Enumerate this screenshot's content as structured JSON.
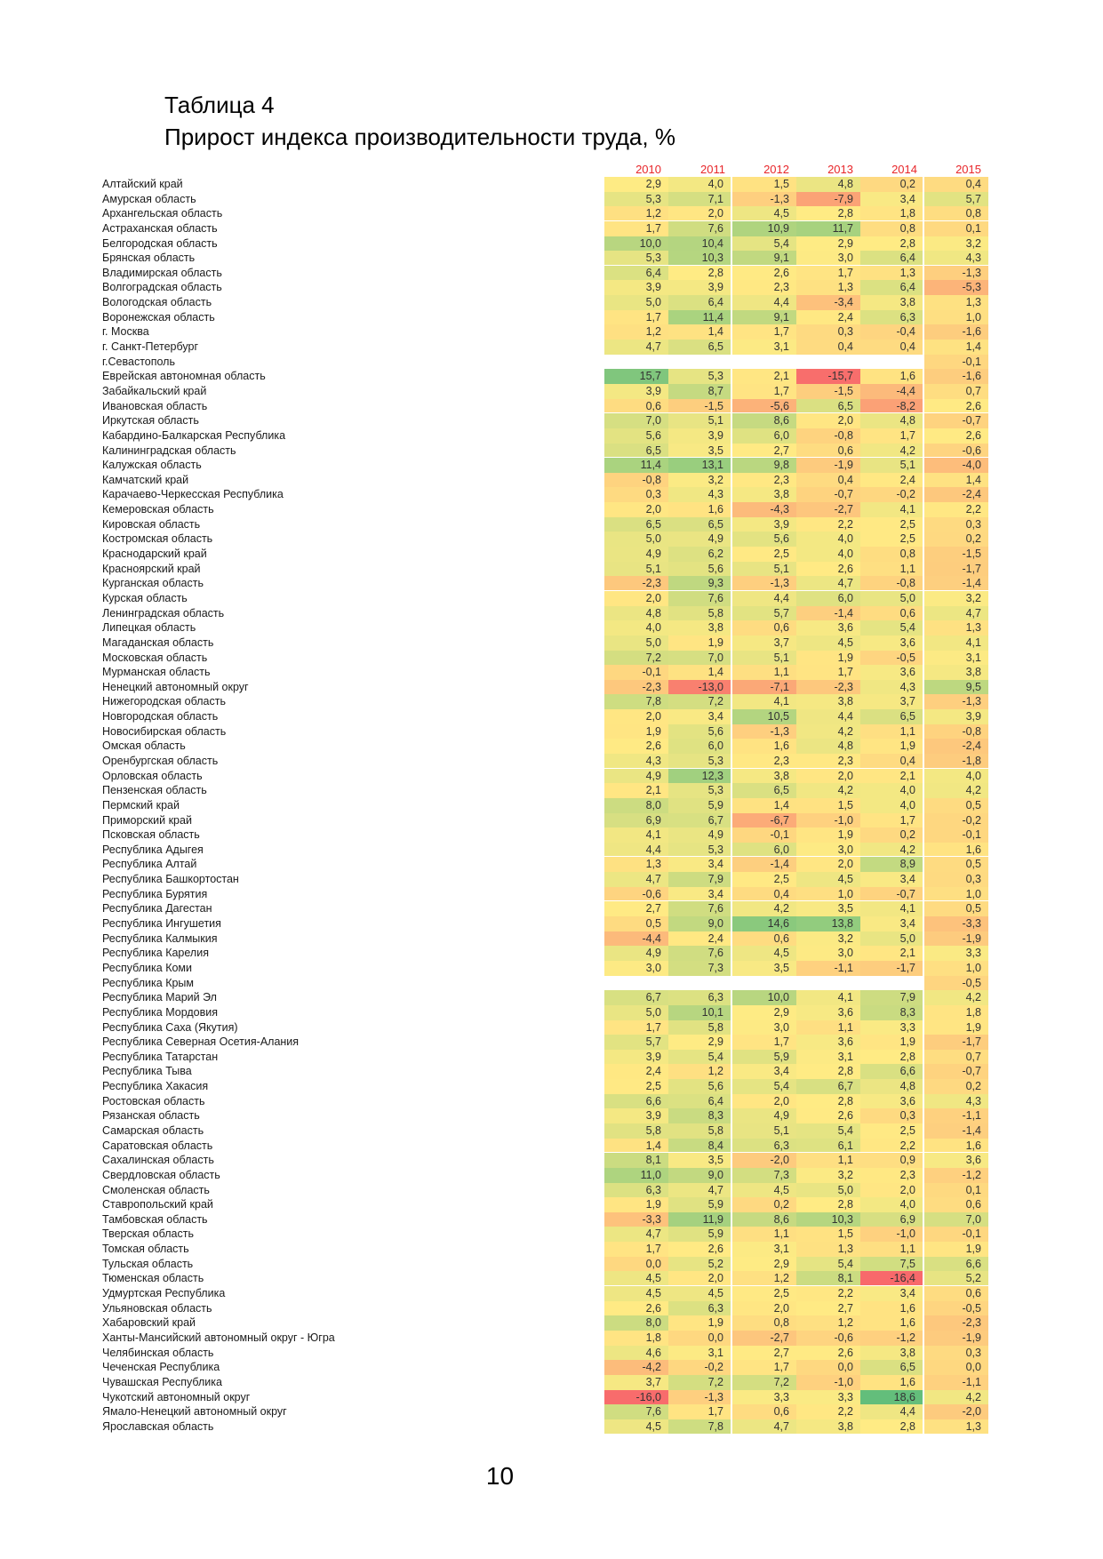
{
  "title": "Таблица 4",
  "subtitle": "Прирост индекса производительности труда, %",
  "page": {
    "number": "10"
  },
  "chart_data": {
    "type": "heatmap",
    "title": "Прирост индекса производительности труда, %",
    "columns": [
      "2010",
      "2011",
      "2012",
      "2013",
      "2014",
      "2015"
    ],
    "header_color": "#e8262a",
    "color_scale": {
      "min": -16.4,
      "mid": 2.8,
      "max": 18.6,
      "min_color": "#F8696B",
      "mid_color": "#FFEB84",
      "max_color": "#63BE7B",
      "empty_color": "#ffffff"
    },
    "number_format": "comma-decimal-1",
    "rows": [
      {
        "name": "Алтайский край",
        "values": [
          2.9,
          4.0,
          1.5,
          4.8,
          0.2,
          0.4
        ]
      },
      {
        "name": "Амурская область",
        "values": [
          5.3,
          7.1,
          -1.3,
          -7.9,
          3.4,
          5.7
        ]
      },
      {
        "name": "Архангельская область",
        "values": [
          1.2,
          2.0,
          4.5,
          2.8,
          1.8,
          0.8
        ]
      },
      {
        "name": "Астраханская область",
        "values": [
          1.7,
          7.6,
          10.9,
          11.7,
          0.8,
          0.1
        ]
      },
      {
        "name": "Белгородская область",
        "values": [
          10.0,
          10.4,
          5.4,
          2.9,
          2.8,
          3.2
        ]
      },
      {
        "name": "Брянская область",
        "values": [
          5.3,
          10.3,
          9.1,
          3.0,
          6.4,
          4.3
        ]
      },
      {
        "name": "Владимирская область",
        "values": [
          6.4,
          2.8,
          2.6,
          1.7,
          1.3,
          -1.3
        ]
      },
      {
        "name": "Волгоградская область",
        "values": [
          3.9,
          3.9,
          2.3,
          1.3,
          6.4,
          -5.3
        ]
      },
      {
        "name": "Вологодская область",
        "values": [
          5.0,
          6.4,
          4.4,
          -3.4,
          3.8,
          1.3
        ]
      },
      {
        "name": "Воронежская область",
        "values": [
          1.7,
          11.4,
          9.1,
          2.4,
          6.3,
          1.0
        ]
      },
      {
        "name": "г. Москва",
        "values": [
          1.2,
          1.4,
          1.7,
          0.3,
          -0.4,
          -1.6
        ]
      },
      {
        "name": "г. Санкт-Петербург",
        "values": [
          4.7,
          6.5,
          3.1,
          0.4,
          0.4,
          1.4
        ]
      },
      {
        "name": "г.Севастополь",
        "values": [
          null,
          null,
          null,
          null,
          null,
          -0.1
        ]
      },
      {
        "name": "Еврейская автономная область",
        "values": [
          15.7,
          5.3,
          2.1,
          -15.7,
          1.6,
          -1.6
        ]
      },
      {
        "name": "Забайкальский край",
        "values": [
          3.9,
          8.7,
          1.7,
          -1.5,
          -4.4,
          0.7
        ]
      },
      {
        "name": "Ивановская область",
        "values": [
          0.6,
          -1.5,
          -5.6,
          6.5,
          -8.2,
          2.6
        ]
      },
      {
        "name": "Иркутская область",
        "values": [
          7.0,
          5.1,
          8.6,
          2.0,
          4.8,
          -0.7
        ]
      },
      {
        "name": "Кабардино-Балкарская Республика",
        "values": [
          5.6,
          3.9,
          6.0,
          -0.8,
          1.7,
          2.6
        ]
      },
      {
        "name": "Калининградская область",
        "values": [
          6.5,
          3.5,
          2.7,
          0.6,
          4.2,
          -0.6
        ]
      },
      {
        "name": "Калужская область",
        "values": [
          11.4,
          13.1,
          9.8,
          -1.9,
          5.1,
          -4.0
        ]
      },
      {
        "name": "Камчатский край",
        "values": [
          -0.8,
          3.2,
          2.3,
          0.4,
          2.4,
          1.4
        ]
      },
      {
        "name": "Карачаево-Черкесская Республика",
        "values": [
          0.3,
          4.3,
          3.8,
          -0.7,
          -0.2,
          -2.4
        ]
      },
      {
        "name": "Кемеровская область",
        "values": [
          2.0,
          1.6,
          -4.3,
          -2.7,
          4.1,
          2.2
        ]
      },
      {
        "name": "Кировская область",
        "values": [
          6.5,
          6.5,
          3.9,
          2.2,
          2.5,
          0.3
        ]
      },
      {
        "name": "Костромская область",
        "values": [
          5.0,
          4.9,
          5.6,
          4.0,
          2.5,
          0.2
        ]
      },
      {
        "name": "Краснодарский край",
        "values": [
          4.9,
          6.2,
          2.5,
          4.0,
          0.8,
          -1.5
        ]
      },
      {
        "name": "Красноярский край",
        "values": [
          5.1,
          5.6,
          5.1,
          2.6,
          1.1,
          -1.7
        ]
      },
      {
        "name": "Курганская область",
        "values": [
          -2.3,
          9.3,
          -1.3,
          4.7,
          -0.8,
          -1.4
        ]
      },
      {
        "name": "Курская область",
        "values": [
          2.0,
          7.6,
          4.4,
          6.0,
          5.0,
          3.2
        ]
      },
      {
        "name": "Ленинградская область",
        "values": [
          4.8,
          5.8,
          5.7,
          -1.4,
          0.6,
          4.7
        ]
      },
      {
        "name": "Липецкая область",
        "values": [
          4.0,
          3.8,
          0.6,
          3.6,
          5.4,
          1.3
        ]
      },
      {
        "name": "Магаданская область",
        "values": [
          5.0,
          1.9,
          3.7,
          4.5,
          3.6,
          4.1
        ]
      },
      {
        "name": "Московская область",
        "values": [
          7.2,
          7.0,
          5.1,
          1.9,
          -0.5,
          3.1
        ]
      },
      {
        "name": "Мурманская область",
        "values": [
          -0.1,
          1.4,
          1.1,
          1.7,
          3.6,
          3.8
        ]
      },
      {
        "name": "Ненецкий автономный округ",
        "values": [
          -2.3,
          -13.0,
          -7.1,
          -2.3,
          4.3,
          9.5
        ]
      },
      {
        "name": "Нижегородская область",
        "values": [
          7.8,
          7.2,
          4.1,
          3.8,
          3.7,
          -1.3
        ]
      },
      {
        "name": "Новгородская область",
        "values": [
          2.0,
          3.4,
          10.5,
          4.4,
          6.5,
          3.9
        ]
      },
      {
        "name": "Новосибирская область",
        "values": [
          1.9,
          5.6,
          -1.3,
          4.2,
          1.1,
          -0.8
        ]
      },
      {
        "name": "Омская область",
        "values": [
          2.6,
          6.0,
          1.6,
          4.8,
          1.9,
          -2.4
        ]
      },
      {
        "name": "Оренбургская область",
        "values": [
          4.3,
          5.3,
          2.3,
          2.3,
          0.4,
          -1.8
        ]
      },
      {
        "name": "Орловская область",
        "values": [
          4.9,
          12.3,
          3.8,
          2.0,
          2.1,
          4.0
        ]
      },
      {
        "name": "Пензенская область",
        "values": [
          2.1,
          5.3,
          6.5,
          4.2,
          4.0,
          4.2
        ]
      },
      {
        "name": "Пермский край",
        "values": [
          8.0,
          5.9,
          1.4,
          1.5,
          4.0,
          0.5
        ]
      },
      {
        "name": "Приморский край",
        "values": [
          6.9,
          6.7,
          -6.7,
          -1.0,
          1.7,
          -0.2
        ]
      },
      {
        "name": "Псковская область",
        "values": [
          4.1,
          4.9,
          -0.1,
          1.9,
          0.2,
          -0.1
        ]
      },
      {
        "name": "Республика Адыгея",
        "values": [
          4.4,
          5.3,
          6.0,
          3.0,
          4.2,
          1.6
        ]
      },
      {
        "name": "Республика Алтай",
        "values": [
          1.3,
          3.4,
          -1.4,
          2.0,
          8.9,
          0.5
        ]
      },
      {
        "name": "Республика Башкортостан",
        "values": [
          4.7,
          7.9,
          2.5,
          4.5,
          3.4,
          0.3
        ]
      },
      {
        "name": "Республика Бурятия",
        "values": [
          -0.6,
          3.4,
          0.4,
          1.0,
          -0.7,
          1.0
        ]
      },
      {
        "name": "Республика Дагестан",
        "values": [
          2.7,
          7.6,
          4.2,
          3.5,
          4.1,
          0.5
        ]
      },
      {
        "name": "Республика Ингушетия",
        "values": [
          0.5,
          9.0,
          14.6,
          13.8,
          3.4,
          -3.3
        ]
      },
      {
        "name": "Республика Калмыкия",
        "values": [
          -4.4,
          2.4,
          0.6,
          3.2,
          5.0,
          -1.9
        ]
      },
      {
        "name": "Республика Карелия",
        "values": [
          4.9,
          7.6,
          4.5,
          3.0,
          2.1,
          3.3
        ]
      },
      {
        "name": "Республика Коми",
        "values": [
          3.0,
          7.3,
          3.5,
          -1.1,
          -1.7,
          1.0
        ]
      },
      {
        "name": "Республика Крым",
        "values": [
          null,
          null,
          null,
          null,
          null,
          -0.5
        ]
      },
      {
        "name": "Республика Марий Эл",
        "values": [
          6.7,
          6.3,
          10.0,
          4.1,
          7.9,
          4.2
        ]
      },
      {
        "name": "Республика Мордовия",
        "values": [
          5.0,
          10.1,
          2.9,
          3.6,
          8.3,
          1.8
        ]
      },
      {
        "name": "Республика Саха (Якутия)",
        "values": [
          1.7,
          5.8,
          3.0,
          1.1,
          3.3,
          1.9
        ]
      },
      {
        "name": "Республика Северная Осетия-Алания",
        "values": [
          5.7,
          2.9,
          1.7,
          3.6,
          1.9,
          -1.7
        ]
      },
      {
        "name": "Республика Татарстан",
        "values": [
          3.9,
          5.4,
          5.9,
          3.1,
          2.8,
          0.7
        ]
      },
      {
        "name": "Республика Тыва",
        "values": [
          2.4,
          1.2,
          3.4,
          2.8,
          6.6,
          -0.7
        ]
      },
      {
        "name": "Республика Хакасия",
        "values": [
          2.5,
          5.6,
          5.4,
          6.7,
          4.8,
          0.2
        ]
      },
      {
        "name": "Ростовская область",
        "values": [
          6.6,
          6.4,
          2.0,
          2.8,
          3.6,
          4.3
        ]
      },
      {
        "name": "Рязанская область",
        "values": [
          3.9,
          8.3,
          4.9,
          2.6,
          0.3,
          -1.1
        ]
      },
      {
        "name": "Самарская область",
        "values": [
          5.8,
          5.8,
          5.1,
          5.4,
          2.5,
          -1.4
        ]
      },
      {
        "name": "Саратовская область",
        "values": [
          1.4,
          8.4,
          6.3,
          6.1,
          2.2,
          1.6
        ]
      },
      {
        "name": "Сахалинская область",
        "values": [
          8.1,
          3.5,
          -2.0,
          1.1,
          0.9,
          3.6
        ]
      },
      {
        "name": "Свердловская область",
        "values": [
          11.0,
          9.0,
          7.3,
          3.2,
          2.3,
          -1.2
        ]
      },
      {
        "name": "Смоленская область",
        "values": [
          6.3,
          4.7,
          4.5,
          5.0,
          2.0,
          0.1
        ]
      },
      {
        "name": "Ставропольский край",
        "values": [
          1.9,
          5.9,
          0.2,
          2.8,
          4.0,
          0.6
        ]
      },
      {
        "name": "Тамбовская область",
        "values": [
          -3.3,
          11.9,
          8.6,
          10.3,
          6.9,
          7.0
        ]
      },
      {
        "name": "Тверская область",
        "values": [
          4.7,
          5.9,
          1.1,
          1.5,
          -1.0,
          -0.1
        ]
      },
      {
        "name": "Томская область",
        "values": [
          1.7,
          2.6,
          3.1,
          1.3,
          1.1,
          1.9
        ]
      },
      {
        "name": "Тульская область",
        "values": [
          0.0,
          5.2,
          2.9,
          5.4,
          7.5,
          6.6
        ]
      },
      {
        "name": "Тюменская область",
        "values": [
          4.5,
          2.0,
          1.2,
          8.1,
          -16.4,
          5.2
        ]
      },
      {
        "name": "Удмуртская Республика",
        "values": [
          4.5,
          4.5,
          2.5,
          2.2,
          3.4,
          0.6
        ]
      },
      {
        "name": "Ульяновская область",
        "values": [
          2.6,
          6.3,
          2.0,
          2.7,
          1.6,
          -0.5
        ]
      },
      {
        "name": "Хабаровский край",
        "values": [
          8.0,
          1.9,
          0.8,
          1.2,
          1.6,
          -2.3
        ]
      },
      {
        "name": "Ханты-Мансийский автономный округ - Югра",
        "values": [
          1.8,
          0.0,
          -2.7,
          -0.6,
          -1.2,
          -1.9
        ]
      },
      {
        "name": "Челябинская область",
        "values": [
          4.6,
          3.1,
          2.7,
          2.6,
          3.8,
          0.3
        ]
      },
      {
        "name": "Чеченская Республика",
        "values": [
          -4.2,
          -0.2,
          1.7,
          0.0,
          6.5,
          0.0
        ]
      },
      {
        "name": "Чувашская Республика",
        "values": [
          3.7,
          7.2,
          7.2,
          -1.0,
          1.6,
          -1.1
        ]
      },
      {
        "name": "Чукотский автономный округ",
        "values": [
          -16.0,
          -1.3,
          3.3,
          3.3,
          18.6,
          4.2
        ]
      },
      {
        "name": "Ямало-Ненецкий автономный округ",
        "values": [
          7.6,
          1.7,
          0.6,
          2.2,
          4.4,
          -2.0
        ]
      },
      {
        "name": "Ярославская область",
        "values": [
          4.5,
          7.8,
          4.7,
          3.8,
          2.8,
          1.3
        ]
      }
    ]
  }
}
